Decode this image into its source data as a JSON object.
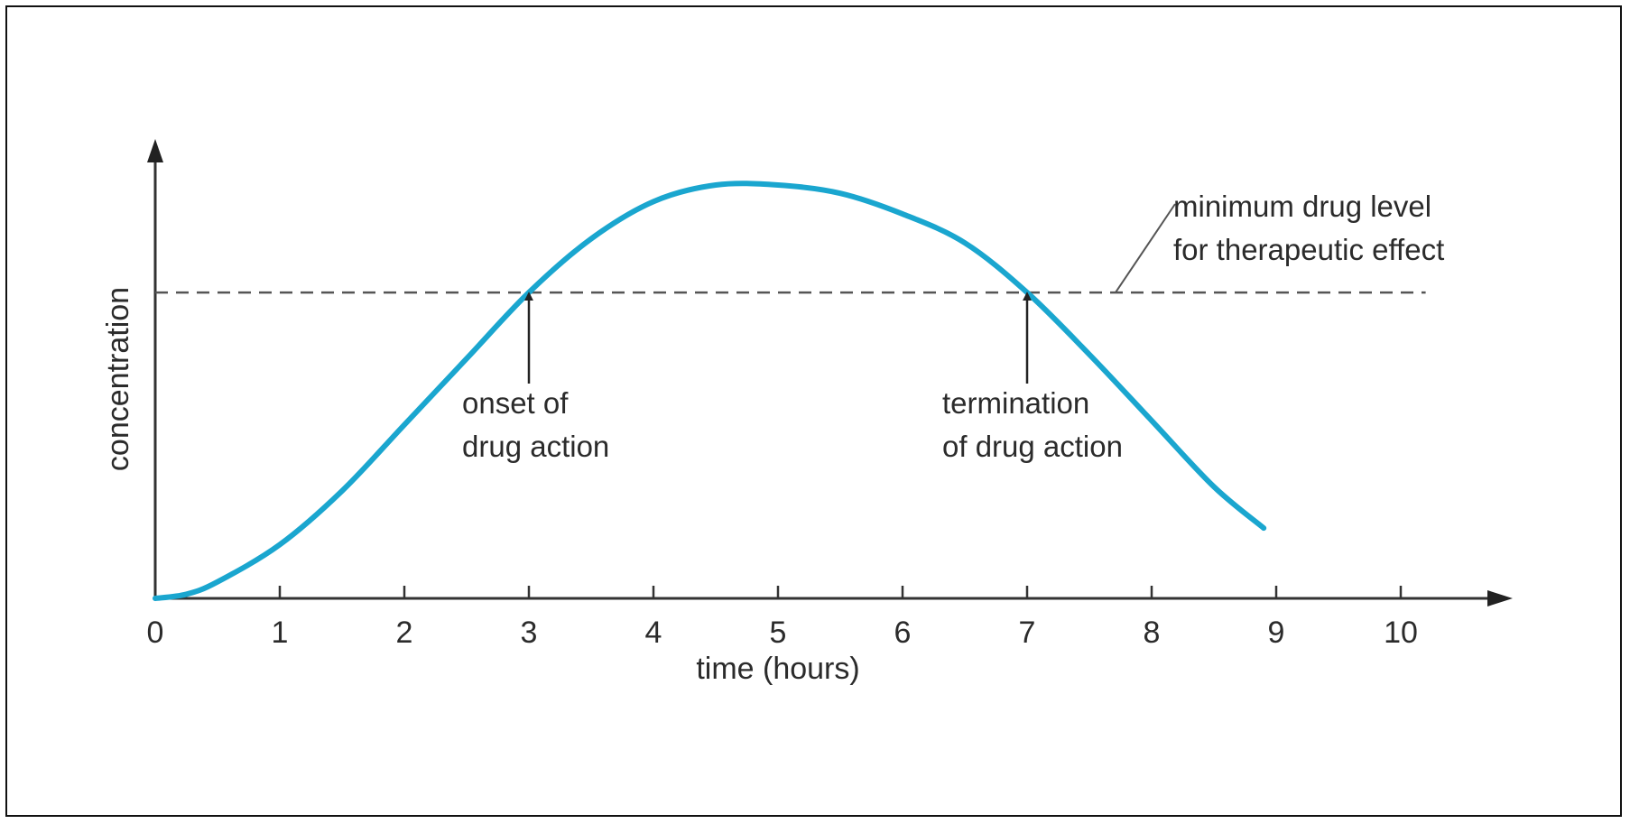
{
  "chart_data": {
    "type": "line",
    "title": "",
    "xlabel": "time (hours)",
    "ylabel": "concentration",
    "xlim": [
      0,
      10
    ],
    "ylim": [
      0,
      1
    ],
    "x_ticks": [
      "0",
      "1",
      "2",
      "3",
      "4",
      "5",
      "6",
      "7",
      "8",
      "9",
      "10"
    ],
    "grid": false,
    "series": [
      {
        "color": "#1aa6cf",
        "x": [
          0,
          0.25,
          0.5,
          1,
          1.5,
          2,
          2.5,
          3,
          3.5,
          4,
          4.5,
          5,
          5.5,
          6,
          6.5,
          7,
          7.5,
          8,
          8.5,
          8.9
        ],
        "y": [
          0,
          0.01,
          0.04,
          0.13,
          0.26,
          0.42,
          0.58,
          0.74,
          0.87,
          0.96,
          1.0,
          1.0,
          0.98,
          0.93,
          0.86,
          0.74,
          0.59,
          0.43,
          0.27,
          0.17
        ]
      }
    ],
    "threshold": {
      "y": 0.74,
      "x_end": 10.2,
      "color": "#555555",
      "label_line1": "minimum drug level",
      "label_line2": "for therapeutic effect"
    },
    "annotations": [
      {
        "x": 3,
        "line1": "onset of",
        "line2": "drug action"
      },
      {
        "x": 7,
        "line1": "termination",
        "line2": "of drug action"
      }
    ]
  }
}
